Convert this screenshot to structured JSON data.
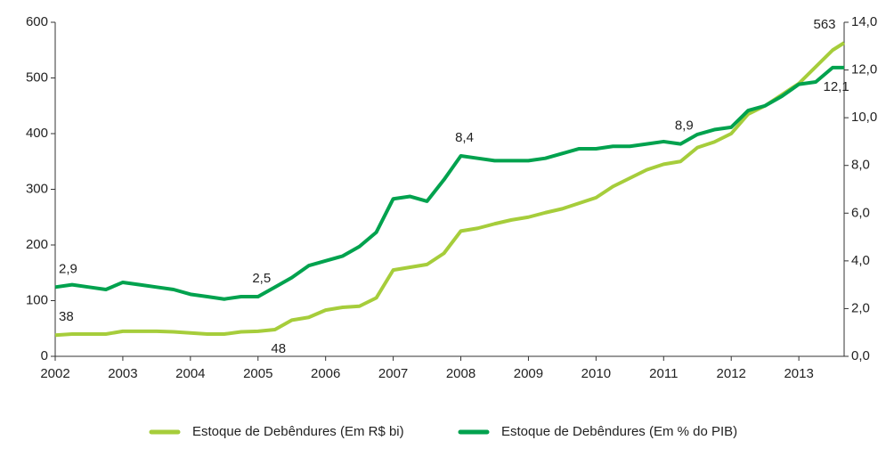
{
  "chart_data": {
    "type": "line",
    "x": [
      2002,
      2002.25,
      2002.5,
      2002.75,
      2003,
      2003.25,
      2003.5,
      2003.75,
      2004,
      2004.25,
      2004.5,
      2004.75,
      2005,
      2005.25,
      2005.5,
      2005.75,
      2006,
      2006.25,
      2006.5,
      2006.75,
      2007,
      2007.25,
      2007.5,
      2007.75,
      2008,
      2008.25,
      2008.5,
      2008.75,
      2009,
      2009.25,
      2009.5,
      2009.75,
      2010,
      2010.25,
      2010.5,
      2010.75,
      2011,
      2011.25,
      2011.5,
      2011.75,
      2012,
      2012.25,
      2012.5,
      2012.75,
      2013,
      2013.25,
      2013.5,
      2013.67
    ],
    "xlim": [
      2002,
      2013.67
    ],
    "xticks": [
      2002,
      2003,
      2004,
      2005,
      2006,
      2007,
      2008,
      2009,
      2010,
      2011,
      2012,
      2013
    ],
    "ylim": [
      0,
      600
    ],
    "yticks": [
      0,
      100,
      200,
      300,
      400,
      500,
      600
    ],
    "y2lim": [
      0,
      14
    ],
    "y2ticks": [
      {
        "value": 0,
        "label": "0,0"
      },
      {
        "value": 2,
        "label": "2,0"
      },
      {
        "value": 4,
        "label": "4,0"
      },
      {
        "value": 6,
        "label": "6,0"
      },
      {
        "value": 8,
        "label": "8,0"
      },
      {
        "value": 10,
        "label": "10,0"
      },
      {
        "value": 12,
        "label": "12,0"
      },
      {
        "value": 14,
        "label": "14,0"
      }
    ],
    "legend": "bottom",
    "series": [
      {
        "name": "Estoque de Debêndures (Em R$ bi)",
        "color": "#a6cd3b",
        "values": [
          38,
          40,
          40,
          40,
          45,
          45,
          45,
          44,
          42,
          40,
          40,
          44,
          45,
          48,
          65,
          70,
          83,
          88,
          90,
          105,
          155,
          160,
          165,
          185,
          225,
          230,
          238,
          245,
          250,
          258,
          265,
          275,
          285,
          305,
          320,
          335,
          345,
          350,
          375,
          385,
          400,
          435,
          450,
          470,
          490,
          520,
          550,
          563
        ],
        "value_labels": [
          "38",
          null,
          null,
          null,
          null,
          null,
          null,
          null,
          null,
          null,
          null,
          null,
          null,
          "48",
          null,
          null,
          null,
          null,
          null,
          null,
          null,
          null,
          null,
          null,
          null,
          null,
          null,
          null,
          null,
          null,
          null,
          null,
          null,
          null,
          null,
          null,
          null,
          null,
          null,
          null,
          null,
          null,
          null,
          null,
          null,
          null,
          null,
          "563"
        ]
      },
      {
        "name": "Estoque de Debêndures (Em % do PIB)",
        "color": "#00a24e",
        "axis": "y2",
        "values": [
          2.9,
          3.0,
          2.9,
          2.8,
          3.1,
          3.0,
          2.9,
          2.8,
          2.6,
          2.5,
          2.4,
          2.5,
          2.5,
          2.9,
          3.3,
          3.8,
          4.0,
          4.2,
          4.6,
          5.2,
          6.6,
          6.7,
          6.5,
          7.4,
          8.4,
          8.3,
          8.2,
          8.2,
          8.2,
          8.3,
          8.5,
          8.7,
          8.7,
          8.8,
          8.8,
          8.9,
          9.0,
          8.9,
          9.3,
          9.5,
          9.6,
          10.3,
          10.5,
          10.9,
          11.4,
          11.5,
          12.1,
          12.1
        ],
        "value_labels": [
          "2,9",
          null,
          null,
          null,
          null,
          null,
          null,
          null,
          null,
          null,
          null,
          null,
          "2,5",
          null,
          null,
          null,
          null,
          null,
          null,
          null,
          null,
          null,
          null,
          null,
          "8,4",
          null,
          null,
          null,
          null,
          null,
          null,
          null,
          null,
          null,
          null,
          null,
          null,
          "8,9",
          null,
          null,
          null,
          null,
          null,
          null,
          null,
          null,
          "12,1",
          null
        ]
      }
    ]
  }
}
